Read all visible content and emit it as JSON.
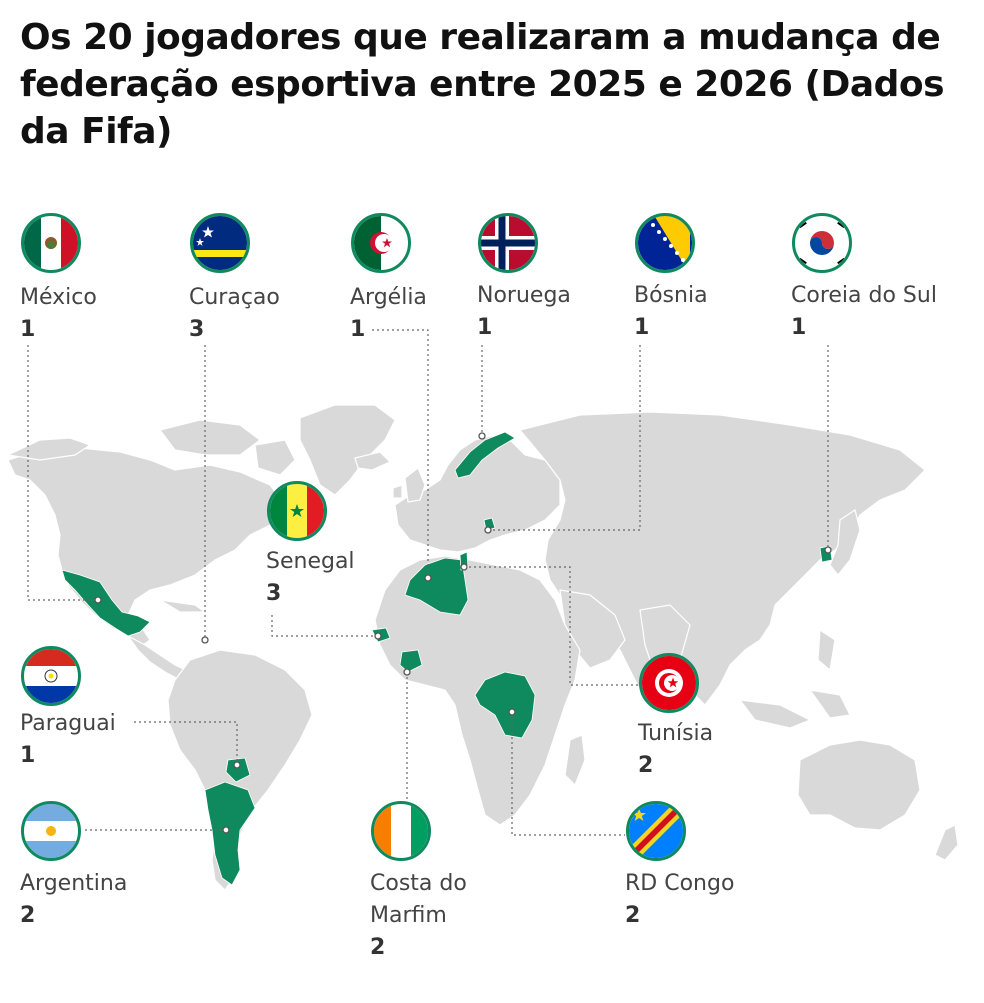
{
  "title": "Os 20 jogadores que realizaram a mudança de federação esportiva entre 2025 e 2026 (Dados da Fifa)",
  "colors": {
    "land": "#d9d9d9",
    "highlight": "#0f8a5f",
    "leader": "#666666",
    "flag_ring": "#0f8a5f",
    "text": "#444444"
  },
  "countries": [
    {
      "id": "mexico",
      "name": "México",
      "count": "1",
      "flag": "mexico-flag-icon"
    },
    {
      "id": "curacao",
      "name": "Curaçao",
      "count": "3",
      "flag": "curacao-flag-icon"
    },
    {
      "id": "algeria",
      "name": "Argélia",
      "count": "1",
      "flag": "algeria-flag-icon"
    },
    {
      "id": "norway",
      "name": "Noruega",
      "count": "1",
      "flag": "norway-flag-icon"
    },
    {
      "id": "bosnia",
      "name": "Bósnia",
      "count": "1",
      "flag": "bosnia-flag-icon"
    },
    {
      "id": "korea",
      "name": "Coreia do Sul",
      "count": "1",
      "flag": "south-korea-flag-icon"
    },
    {
      "id": "senegal",
      "name": "Senegal",
      "count": "3",
      "flag": "senegal-flag-icon"
    },
    {
      "id": "paraguay",
      "name": "Paraguai",
      "count": "1",
      "flag": "paraguay-flag-icon"
    },
    {
      "id": "tunisia",
      "name": "Tunísia",
      "count": "2",
      "flag": "tunisia-flag-icon"
    },
    {
      "id": "argentina",
      "name": "Argentina",
      "count": "2",
      "flag": "argentina-flag-icon"
    },
    {
      "id": "ivory",
      "name": "Costa do Marfim",
      "count": "2",
      "flag": "ivory-coast-flag-icon"
    },
    {
      "id": "drc",
      "name": "RD Congo",
      "count": "2",
      "flag": "dr-congo-flag-icon"
    }
  ]
}
